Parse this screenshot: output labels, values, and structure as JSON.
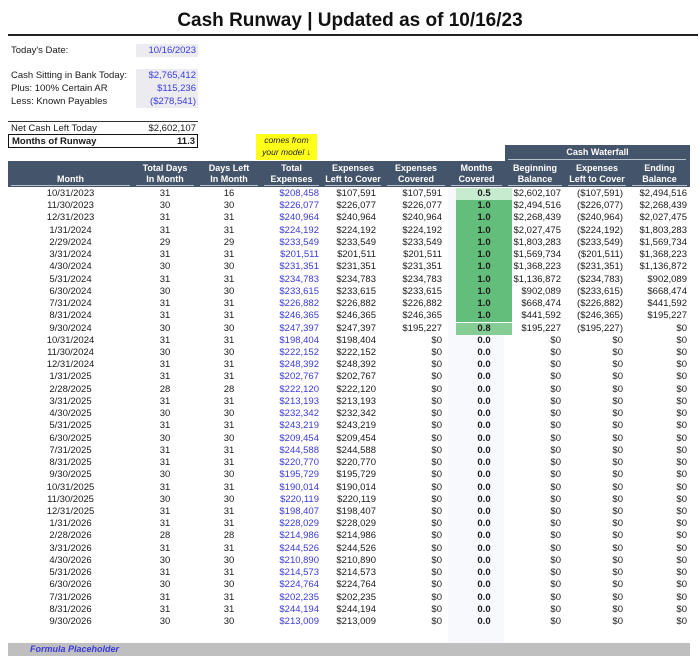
{
  "title": "Cash Runway | Updated as of 10/16/23",
  "summary": {
    "todays_date_label": "Today's Date:",
    "todays_date_value": "10/16/2023",
    "cash_label": "Cash Sitting in Bank Today:",
    "cash_value": "$2,765,412",
    "ar_label": "Plus: 100% Certain AR",
    "ar_value": "$115,236",
    "payables_label": "Less: Known Payables",
    "payables_value": "($278,541)",
    "net_label": "Net Cash Left Today",
    "net_value": "$2,602,107",
    "runway_label": "Months of Runway",
    "runway_value": "11.3"
  },
  "note": {
    "line1": "comes from",
    "line2": "your model ↓"
  },
  "cash_waterfall_label": "Cash Waterfall",
  "headers": {
    "month": "Month",
    "total_days_1": "Total Days",
    "total_days_2": "In Month",
    "days_left_1": "Days Left",
    "days_left_2": "In Month",
    "total_exp_1": "Total",
    "total_exp_2": "Expenses",
    "exp_left_1": "Expenses",
    "exp_left_2": "Left to Cover",
    "exp_cov_1": "Expenses",
    "exp_cov_2": "Covered",
    "months_cov_1": "Months",
    "months_cov_2": "Covered",
    "beg_bal_1": "Beginning",
    "beg_bal_2": "Balance",
    "cw_exp_1": "Expenses",
    "cw_exp_2": "Left to Cover",
    "end_bal_1": "Ending",
    "end_bal_2": "Balance"
  },
  "colors": {
    "header_bg": "#44546a",
    "input_blue": "#3a3adb",
    "covered_full": "#63be7b",
    "covered_partial_high": "#85cc95",
    "covered_partial_low": "#c6ebcf",
    "note_yellow": "#ffff1a"
  },
  "rows": [
    {
      "month": "10/31/2023",
      "total_days": "31",
      "days_left": "16",
      "total_exp": "$208,458",
      "exp_left": "$107,591",
      "exp_cov": "$107,591",
      "months_cov": "0.5",
      "beg": "$2,602,107",
      "cw_exp": "($107,591)",
      "end": "$2,494,516"
    },
    {
      "month": "11/30/2023",
      "total_days": "30",
      "days_left": "30",
      "total_exp": "$226,077",
      "exp_left": "$226,077",
      "exp_cov": "$226,077",
      "months_cov": "1.0",
      "beg": "$2,494,516",
      "cw_exp": "($226,077)",
      "end": "$2,268,439"
    },
    {
      "month": "12/31/2023",
      "total_days": "31",
      "days_left": "31",
      "total_exp": "$240,964",
      "exp_left": "$240,964",
      "exp_cov": "$240,964",
      "months_cov": "1.0",
      "beg": "$2,268,439",
      "cw_exp": "($240,964)",
      "end": "$2,027,475"
    },
    {
      "month": "1/31/2024",
      "total_days": "31",
      "days_left": "31",
      "total_exp": "$224,192",
      "exp_left": "$224,192",
      "exp_cov": "$224,192",
      "months_cov": "1.0",
      "beg": "$2,027,475",
      "cw_exp": "($224,192)",
      "end": "$1,803,283"
    },
    {
      "month": "2/29/2024",
      "total_days": "29",
      "days_left": "29",
      "total_exp": "$233,549",
      "exp_left": "$233,549",
      "exp_cov": "$233,549",
      "months_cov": "1.0",
      "beg": "$1,803,283",
      "cw_exp": "($233,549)",
      "end": "$1,569,734"
    },
    {
      "month": "3/31/2024",
      "total_days": "31",
      "days_left": "31",
      "total_exp": "$201,511",
      "exp_left": "$201,511",
      "exp_cov": "$201,511",
      "months_cov": "1.0",
      "beg": "$1,569,734",
      "cw_exp": "($201,511)",
      "end": "$1,368,223"
    },
    {
      "month": "4/30/2024",
      "total_days": "30",
      "days_left": "30",
      "total_exp": "$231,351",
      "exp_left": "$231,351",
      "exp_cov": "$231,351",
      "months_cov": "1.0",
      "beg": "$1,368,223",
      "cw_exp": "($231,351)",
      "end": "$1,136,872"
    },
    {
      "month": "5/31/2024",
      "total_days": "31",
      "days_left": "31",
      "total_exp": "$234,783",
      "exp_left": "$234,783",
      "exp_cov": "$234,783",
      "months_cov": "1.0",
      "beg": "$1,136,872",
      "cw_exp": "($234,783)",
      "end": "$902,089"
    },
    {
      "month": "6/30/2024",
      "total_days": "30",
      "days_left": "30",
      "total_exp": "$233,615",
      "exp_left": "$233,615",
      "exp_cov": "$233,615",
      "months_cov": "1.0",
      "beg": "$902,089",
      "cw_exp": "($233,615)",
      "end": "$668,474"
    },
    {
      "month": "7/31/2024",
      "total_days": "31",
      "days_left": "31",
      "total_exp": "$226,882",
      "exp_left": "$226,882",
      "exp_cov": "$226,882",
      "months_cov": "1.0",
      "beg": "$668,474",
      "cw_exp": "($226,882)",
      "end": "$441,592"
    },
    {
      "month": "8/31/2024",
      "total_days": "31",
      "days_left": "31",
      "total_exp": "$246,365",
      "exp_left": "$246,365",
      "exp_cov": "$246,365",
      "months_cov": "1.0",
      "beg": "$441,592",
      "cw_exp": "($246,365)",
      "end": "$195,227"
    },
    {
      "month": "9/30/2024",
      "total_days": "30",
      "days_left": "30",
      "total_exp": "$247,397",
      "exp_left": "$247,397",
      "exp_cov": "$195,227",
      "months_cov": "0.8",
      "beg": "$195,227",
      "cw_exp": "($195,227)",
      "end": "$0"
    },
    {
      "month": "10/31/2024",
      "total_days": "31",
      "days_left": "31",
      "total_exp": "$198,404",
      "exp_left": "$198,404",
      "exp_cov": "$0",
      "months_cov": "0.0",
      "beg": "$0",
      "cw_exp": "$0",
      "end": "$0"
    },
    {
      "month": "11/30/2024",
      "total_days": "30",
      "days_left": "30",
      "total_exp": "$222,152",
      "exp_left": "$222,152",
      "exp_cov": "$0",
      "months_cov": "0.0",
      "beg": "$0",
      "cw_exp": "$0",
      "end": "$0"
    },
    {
      "month": "12/31/2024",
      "total_days": "31",
      "days_left": "31",
      "total_exp": "$248,392",
      "exp_left": "$248,392",
      "exp_cov": "$0",
      "months_cov": "0.0",
      "beg": "$0",
      "cw_exp": "$0",
      "end": "$0"
    },
    {
      "month": "1/31/2025",
      "total_days": "31",
      "days_left": "31",
      "total_exp": "$202,767",
      "exp_left": "$202,767",
      "exp_cov": "$0",
      "months_cov": "0.0",
      "beg": "$0",
      "cw_exp": "$0",
      "end": "$0"
    },
    {
      "month": "2/28/2025",
      "total_days": "28",
      "days_left": "28",
      "total_exp": "$222,120",
      "exp_left": "$222,120",
      "exp_cov": "$0",
      "months_cov": "0.0",
      "beg": "$0",
      "cw_exp": "$0",
      "end": "$0"
    },
    {
      "month": "3/31/2025",
      "total_days": "31",
      "days_left": "31",
      "total_exp": "$213,193",
      "exp_left": "$213,193",
      "exp_cov": "$0",
      "months_cov": "0.0",
      "beg": "$0",
      "cw_exp": "$0",
      "end": "$0"
    },
    {
      "month": "4/30/2025",
      "total_days": "30",
      "days_left": "30",
      "total_exp": "$232,342",
      "exp_left": "$232,342",
      "exp_cov": "$0",
      "months_cov": "0.0",
      "beg": "$0",
      "cw_exp": "$0",
      "end": "$0"
    },
    {
      "month": "5/31/2025",
      "total_days": "31",
      "days_left": "31",
      "total_exp": "$243,219",
      "exp_left": "$243,219",
      "exp_cov": "$0",
      "months_cov": "0.0",
      "beg": "$0",
      "cw_exp": "$0",
      "end": "$0"
    },
    {
      "month": "6/30/2025",
      "total_days": "30",
      "days_left": "30",
      "total_exp": "$209,454",
      "exp_left": "$209,454",
      "exp_cov": "$0",
      "months_cov": "0.0",
      "beg": "$0",
      "cw_exp": "$0",
      "end": "$0"
    },
    {
      "month": "7/31/2025",
      "total_days": "31",
      "days_left": "31",
      "total_exp": "$244,588",
      "exp_left": "$244,588",
      "exp_cov": "$0",
      "months_cov": "0.0",
      "beg": "$0",
      "cw_exp": "$0",
      "end": "$0"
    },
    {
      "month": "8/31/2025",
      "total_days": "31",
      "days_left": "31",
      "total_exp": "$220,770",
      "exp_left": "$220,770",
      "exp_cov": "$0",
      "months_cov": "0.0",
      "beg": "$0",
      "cw_exp": "$0",
      "end": "$0"
    },
    {
      "month": "9/30/2025",
      "total_days": "30",
      "days_left": "30",
      "total_exp": "$195,729",
      "exp_left": "$195,729",
      "exp_cov": "$0",
      "months_cov": "0.0",
      "beg": "$0",
      "cw_exp": "$0",
      "end": "$0"
    },
    {
      "month": "10/31/2025",
      "total_days": "31",
      "days_left": "31",
      "total_exp": "$190,014",
      "exp_left": "$190,014",
      "exp_cov": "$0",
      "months_cov": "0.0",
      "beg": "$0",
      "cw_exp": "$0",
      "end": "$0"
    },
    {
      "month": "11/30/2025",
      "total_days": "30",
      "days_left": "30",
      "total_exp": "$220,119",
      "exp_left": "$220,119",
      "exp_cov": "$0",
      "months_cov": "0.0",
      "beg": "$0",
      "cw_exp": "$0",
      "end": "$0"
    },
    {
      "month": "12/31/2025",
      "total_days": "31",
      "days_left": "31",
      "total_exp": "$198,407",
      "exp_left": "$198,407",
      "exp_cov": "$0",
      "months_cov": "0.0",
      "beg": "$0",
      "cw_exp": "$0",
      "end": "$0"
    },
    {
      "month": "1/31/2026",
      "total_days": "31",
      "days_left": "31",
      "total_exp": "$228,029",
      "exp_left": "$228,029",
      "exp_cov": "$0",
      "months_cov": "0.0",
      "beg": "$0",
      "cw_exp": "$0",
      "end": "$0"
    },
    {
      "month": "2/28/2026",
      "total_days": "28",
      "days_left": "28",
      "total_exp": "$214,986",
      "exp_left": "$214,986",
      "exp_cov": "$0",
      "months_cov": "0.0",
      "beg": "$0",
      "cw_exp": "$0",
      "end": "$0"
    },
    {
      "month": "3/31/2026",
      "total_days": "31",
      "days_left": "31",
      "total_exp": "$244,526",
      "exp_left": "$244,526",
      "exp_cov": "$0",
      "months_cov": "0.0",
      "beg": "$0",
      "cw_exp": "$0",
      "end": "$0"
    },
    {
      "month": "4/30/2026",
      "total_days": "30",
      "days_left": "30",
      "total_exp": "$210,890",
      "exp_left": "$210,890",
      "exp_cov": "$0",
      "months_cov": "0.0",
      "beg": "$0",
      "cw_exp": "$0",
      "end": "$0"
    },
    {
      "month": "5/31/2026",
      "total_days": "31",
      "days_left": "31",
      "total_exp": "$214,573",
      "exp_left": "$214,573",
      "exp_cov": "$0",
      "months_cov": "0.0",
      "beg": "$0",
      "cw_exp": "$0",
      "end": "$0"
    },
    {
      "month": "6/30/2026",
      "total_days": "30",
      "days_left": "30",
      "total_exp": "$224,764",
      "exp_left": "$224,764",
      "exp_cov": "$0",
      "months_cov": "0.0",
      "beg": "$0",
      "cw_exp": "$0",
      "end": "$0"
    },
    {
      "month": "7/31/2026",
      "total_days": "31",
      "days_left": "31",
      "total_exp": "$202,235",
      "exp_left": "$202,235",
      "exp_cov": "$0",
      "months_cov": "0.0",
      "beg": "$0",
      "cw_exp": "$0",
      "end": "$0"
    },
    {
      "month": "8/31/2026",
      "total_days": "31",
      "days_left": "31",
      "total_exp": "$244,194",
      "exp_left": "$244,194",
      "exp_cov": "$0",
      "months_cov": "0.0",
      "beg": "$0",
      "cw_exp": "$0",
      "end": "$0"
    },
    {
      "month": "9/30/2026",
      "total_days": "30",
      "days_left": "30",
      "total_exp": "$213,009",
      "exp_left": "$213,009",
      "exp_cov": "$0",
      "months_cov": "0.0",
      "beg": "$0",
      "cw_exp": "$0",
      "end": "$0"
    }
  ],
  "footer": "Formula Placeholder"
}
